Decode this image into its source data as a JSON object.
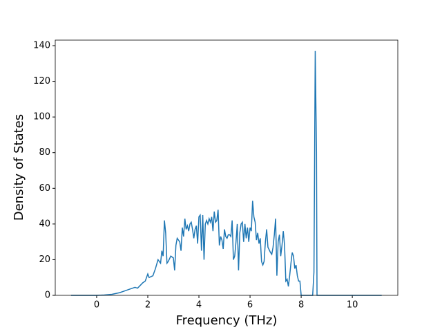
{
  "chart_data": {
    "type": "line",
    "xlabel": "Frequency (THz)",
    "ylabel": "Density of States",
    "xlim": [
      -1.62,
      11.78
    ],
    "ylim": [
      0,
      143.1
    ],
    "xticks": [
      0,
      2,
      4,
      6,
      8,
      10
    ],
    "yticks": [
      0,
      20,
      40,
      60,
      80,
      100,
      120,
      140
    ],
    "series": [
      {
        "color": "#1f77b4",
        "x": [
          -1.0,
          -0.5,
          0,
          0.3,
          0.6,
          0.9,
          1.1,
          1.3,
          1.5,
          1.6,
          1.7,
          1.8,
          1.9,
          2.0,
          2.05,
          2.2,
          2.3,
          2.4,
          2.5,
          2.55,
          2.6,
          2.65,
          2.7,
          2.75,
          2.8,
          2.9,
          3.0,
          3.05,
          3.1,
          3.15,
          3.25,
          3.3,
          3.35,
          3.4,
          3.45,
          3.5,
          3.55,
          3.6,
          3.65,
          3.7,
          3.75,
          3.8,
          3.85,
          3.9,
          3.95,
          4.0,
          4.05,
          4.1,
          4.15,
          4.2,
          4.25,
          4.3,
          4.35,
          4.4,
          4.45,
          4.5,
          4.55,
          4.6,
          4.65,
          4.7,
          4.75,
          4.8,
          4.85,
          4.9,
          4.95,
          5.0,
          5.05,
          5.1,
          5.15,
          5.2,
          5.25,
          5.3,
          5.35,
          5.4,
          5.45,
          5.5,
          5.55,
          5.6,
          5.65,
          5.7,
          5.75,
          5.8,
          5.85,
          5.9,
          5.95,
          6.0,
          6.05,
          6.1,
          6.15,
          6.2,
          6.25,
          6.3,
          6.35,
          6.4,
          6.45,
          6.5,
          6.55,
          6.6,
          6.65,
          6.7,
          6.8,
          6.85,
          6.9,
          6.95,
          7.0,
          7.05,
          7.1,
          7.15,
          7.2,
          7.25,
          7.3,
          7.35,
          7.4,
          7.45,
          7.5,
          7.55,
          7.6,
          7.65,
          7.7,
          7.75,
          7.8,
          7.85,
          7.9,
          7.95,
          8.0,
          8.3,
          8.45,
          8.5,
          8.55,
          8.6,
          8.62,
          9.0,
          10,
          11.15
        ],
        "values": [
          0,
          0,
          0,
          0.2,
          0.6,
          1.5,
          2.5,
          3.5,
          4.5,
          4,
          5.5,
          7,
          8,
          12,
          10,
          11,
          15,
          20,
          18,
          25,
          22,
          42,
          35,
          18,
          19,
          22,
          21,
          14,
          28,
          32,
          30,
          25,
          38,
          33,
          43,
          37,
          39,
          36,
          40,
          41,
          37,
          32,
          37,
          39,
          29,
          44,
          45,
          25,
          45,
          20,
          40,
          42,
          40,
          43,
          41,
          44,
          36,
          47,
          41,
          42,
          48,
          28,
          33,
          31,
          26,
          37,
          33,
          32,
          34,
          34,
          33,
          42,
          20,
          22,
          30,
          40,
          14,
          35,
          40,
          41,
          30,
          40,
          32,
          38,
          30,
          38,
          36,
          53,
          44,
          41,
          31,
          35,
          29,
          32,
          19,
          17,
          19,
          30,
          37,
          27,
          24,
          23,
          27,
          34,
          43,
          11,
          30,
          34,
          22,
          28,
          36,
          28,
          8,
          9,
          5,
          11,
          18,
          24,
          22,
          15,
          17,
          11,
          8,
          8,
          0,
          0,
          0,
          13,
          137,
          80,
          0,
          0,
          0,
          0
        ]
      }
    ]
  }
}
